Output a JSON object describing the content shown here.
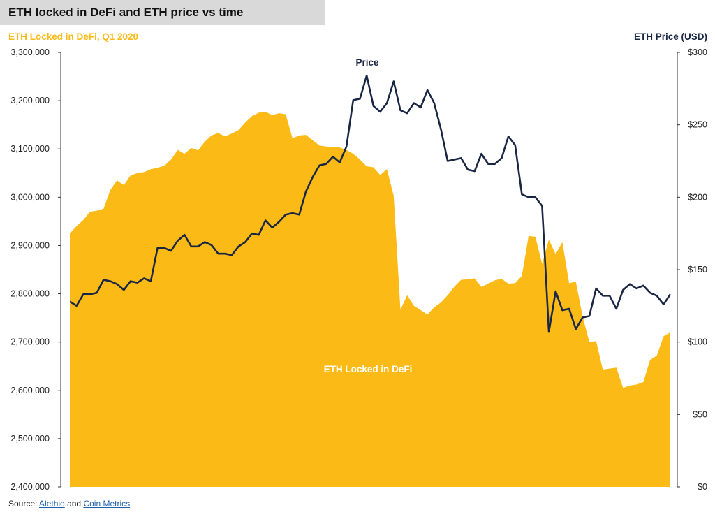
{
  "title": "ETH locked in DeFi and ETH price vs time",
  "source": {
    "prefix": "Source: ",
    "link1": "Alethio",
    "conjunction": " and ",
    "link2": "Coin Metrics"
  },
  "colors": {
    "area": "#fbba15",
    "line": "#1a2744",
    "left_title": "#fbba15",
    "right_title": "#1a2744",
    "title_bg": "#d9d9d9"
  },
  "chart_data": {
    "type": "area+line",
    "left_axis": {
      "label": "ETH Locked in DeFi, Q1 2020",
      "ylim": [
        2400000,
        3300000
      ],
      "ticks": [
        "2,400,000",
        "2,500,000",
        "2,600,000",
        "2,700,000",
        "2,800,000",
        "2,900,000",
        "3,000,000",
        "3,100,000",
        "3,200,000",
        "3,300,000"
      ]
    },
    "right_axis": {
      "label": "ETH Price (USD)",
      "ylim": [
        0,
        300
      ],
      "ticks": [
        "$0",
        "$50",
        "$100",
        "$150",
        "$200",
        "$250",
        "$300"
      ]
    },
    "series": [
      {
        "name": "ETH Locked in DeFi",
        "axis": "left",
        "style": "area",
        "values": [
          2925000,
          2940000,
          2953000,
          2970000,
          2972000,
          2976000,
          3015000,
          3035000,
          3025000,
          3045000,
          3050000,
          3052000,
          3058000,
          3061000,
          3065000,
          3078000,
          3098000,
          3090000,
          3102000,
          3097000,
          3115000,
          3128000,
          3133000,
          3126000,
          3132000,
          3139000,
          3155000,
          3168000,
          3175000,
          3177000,
          3170000,
          3174000,
          3172000,
          3122000,
          3128000,
          3129000,
          3118000,
          3107000,
          3105000,
          3104000,
          3103000,
          3098000,
          3090000,
          3078000,
          3064000,
          3062000,
          3046000,
          3058000,
          3003000,
          2767000,
          2797000,
          2775000,
          2766000,
          2757000,
          2772000,
          2782000,
          2797000,
          2815000,
          2829000,
          2830000,
          2832000,
          2814000,
          2821000,
          2828000,
          2831000,
          2821000,
          2822000,
          2837000,
          2920000,
          2918000,
          2862000,
          2912000,
          2882000,
          2907000,
          2822000,
          2825000,
          2753000,
          2700000,
          2702000,
          2643000,
          2645000,
          2647000,
          2605000,
          2610000,
          2612000,
          2617000,
          2663000,
          2672000,
          2712000,
          2720000
        ]
      },
      {
        "name": "Price",
        "axis": "right",
        "style": "line",
        "values": [
          128,
          125,
          133,
          133,
          134,
          143,
          142,
          140,
          136,
          142,
          141,
          144,
          142,
          165,
          165,
          163,
          170,
          174,
          166,
          166,
          169,
          167,
          161,
          161,
          160,
          166,
          169,
          175,
          174,
          184,
          179,
          183,
          188,
          189,
          188,
          204,
          214,
          222,
          223,
          228,
          224,
          235,
          267,
          268,
          284,
          263,
          259,
          265,
          280,
          260,
          258,
          265,
          262,
          274,
          265,
          247,
          225,
          226,
          227,
          219,
          218,
          230,
          223,
          223,
          227,
          242,
          236,
          202,
          200,
          200,
          194,
          107,
          135,
          122,
          123,
          109,
          117,
          118,
          137,
          132,
          132,
          123,
          136,
          140,
          137,
          139,
          134,
          132,
          126,
          133
        ]
      }
    ]
  }
}
